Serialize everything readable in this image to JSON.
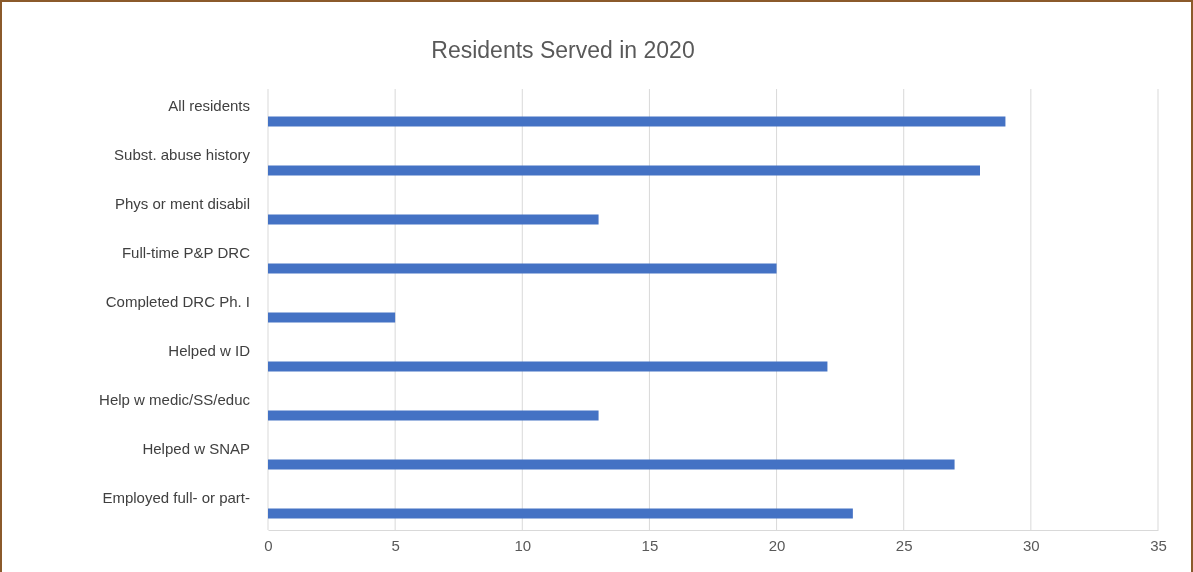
{
  "chart_data": {
    "type": "bar",
    "orientation": "horizontal",
    "title": "Residents Served in 2020",
    "categories": [
      "All residents",
      "Subst. abuse history",
      "Phys or ment disabil",
      "Full-time P&P DRC",
      "Completed DRC Ph. I",
      "Helped w ID",
      "Help w medic/SS/educ",
      "Helped w SNAP",
      "Employed full- or part-"
    ],
    "values": [
      29,
      28,
      13,
      20,
      5,
      22,
      13,
      27,
      23
    ],
    "color": "#4472c4",
    "xlim": [
      0,
      35
    ],
    "xticks": [
      0,
      5,
      10,
      15,
      20,
      25,
      30,
      35
    ],
    "grid": "x"
  }
}
